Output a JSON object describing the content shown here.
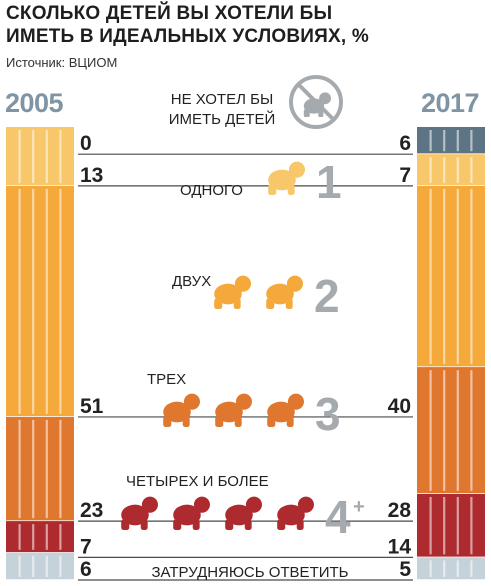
{
  "header": {
    "title_line1": "СКОЛЬКО ДЕТЕЙ ВЫ ХОТЕЛИ БЫ",
    "title_line2": "ИМЕТЬ В ИДЕАЛЬНЫХ УСЛОВИЯХ, %",
    "source": "Источник: ВЦИОМ"
  },
  "chart_data": {
    "type": "bar",
    "title": "СКОЛЬКО ДЕТЕЙ ВЫ ХОТЕЛИ БЫ ИМЕТЬ В ИДЕАЛЬНЫХ УСЛОВИЯХ, %",
    "source": "Источник: ВЦИОМ",
    "years": [
      "2005",
      "2017"
    ],
    "categories": [
      {
        "label_lines": [
          "НЕ ХОТЕЛ БЫ",
          "ИМЕТЬ ДЕТЕЙ"
        ],
        "figure": "",
        "icon": "no-child-icon",
        "color": "#5c7484",
        "v2005": 0,
        "v2017": 6
      },
      {
        "label_lines": [
          "ОДНОГО"
        ],
        "figure": "1",
        "icon": "baby-icon",
        "color": "#f7c76a",
        "v2005": 13,
        "v2017": 7
      },
      {
        "label_lines": [
          "ДВУХ"
        ],
        "figure": "2",
        "icon": "baby-icon",
        "color": "#f4a93a",
        "v2005": 51,
        "v2017": 40
      },
      {
        "label_lines": [
          "ТРЕХ"
        ],
        "figure": "3",
        "icon": "baby-icon",
        "color": "#e0772e",
        "v2005": 23,
        "v2017": 28
      },
      {
        "label_lines": [
          "ЧЕТЫРЕХ И БОЛЕЕ"
        ],
        "figure": "4",
        "figure_suffix": "+",
        "icon": "baby-icon",
        "color": "#ad2a2e",
        "v2005": 7,
        "v2017": 14
      },
      {
        "label_lines": [
          "ЗАТРУДНЯЮСЬ ОТВЕТИТЬ"
        ],
        "figure": "",
        "icon": "",
        "color": "#c6d2d9",
        "v2005": 6,
        "v2017": 5
      }
    ],
    "series": [
      {
        "name": "2005",
        "values": [
          0,
          13,
          51,
          23,
          7,
          6
        ]
      },
      {
        "name": "2017",
        "values": [
          6,
          7,
          40,
          28,
          14,
          5
        ]
      }
    ],
    "total": 100
  }
}
